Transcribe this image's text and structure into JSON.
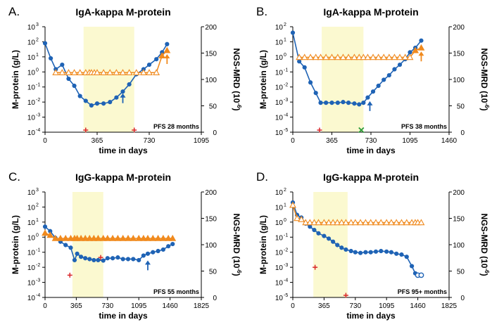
{
  "colors": {
    "m_protein": "#1f63b5",
    "ngs": "#f08a1e",
    "treatment_band": "#fbf9d0",
    "event_plus": "#d9262a",
    "event_x": "#2a9a3a"
  },
  "chart_data": [
    {
      "type": "line",
      "panel": "A.",
      "title": "IgA-kappa M-protein",
      "xlabel": "time in days",
      "ylabel_left": "M-protein (g/L)",
      "ylabel_right": "NGS-MRD (10",
      "ylabel_right_sup": "-6",
      "ylabel_right_close": ")",
      "xlim": [
        0,
        1095
      ],
      "xticks": [
        "0",
        "365",
        "730",
        "1095"
      ],
      "ylim_log_exp": [
        -4,
        3
      ],
      "y_base": "10",
      "yright_lim": [
        0,
        200
      ],
      "yright_ticks": [
        "0",
        "50",
        "100",
        "150",
        "200"
      ],
      "treatment_band": [
        270,
        625
      ],
      "pfs_label": "PFS 28 months",
      "series": [
        {
          "name": "M-protein",
          "axis": "left",
          "points": [
            [
              0,
              80
            ],
            [
              40,
              8
            ],
            [
              75,
              1.5
            ],
            [
              120,
              3
            ],
            [
              165,
              0.35
            ],
            [
              205,
              0.12
            ],
            [
              245,
              0.025
            ],
            [
              285,
              0.012
            ],
            [
              325,
              0.006
            ],
            [
              365,
              0.008
            ],
            [
              410,
              0.008
            ],
            [
              455,
              0.01
            ],
            [
              500,
              0.02
            ],
            [
              545,
              0.05
            ],
            [
              590,
              0.15
            ],
            [
              640,
              0.7
            ],
            [
              690,
              1.5
            ],
            [
              730,
              3
            ],
            [
              780,
              7
            ],
            [
              820,
              20
            ],
            [
              855,
              70
            ]
          ]
        },
        {
          "name": "NGS-MRD",
          "axis": "right",
          "open_triangles_below_last": true,
          "points": [
            [
              75,
              113
            ],
            [
              120,
              113
            ],
            [
              165,
              113
            ],
            [
              205,
              113
            ],
            [
              245,
              113
            ],
            [
              285,
              113
            ],
            [
              310,
              113
            ],
            [
              325,
              113
            ],
            [
              345,
              113
            ],
            [
              365,
              113
            ],
            [
              410,
              113
            ],
            [
              455,
              113
            ],
            [
              500,
              113
            ],
            [
              545,
              113
            ],
            [
              590,
              113
            ],
            [
              640,
              113
            ],
            [
              690,
              113
            ],
            [
              730,
              113
            ],
            [
              780,
              113
            ],
            [
              820,
              145
            ],
            [
              855,
              155
            ]
          ]
        }
      ],
      "arrows": [
        {
          "axis": "left",
          "x": 545,
          "y": 0.02,
          "color": "m_protein"
        },
        {
          "axis": "right",
          "x": 855,
          "y": 140,
          "color": "ngs"
        }
      ],
      "events": [
        {
          "x": 285,
          "symbol": "+",
          "color": "event_plus"
        },
        {
          "x": 625,
          "symbol": "+",
          "color": "event_plus"
        }
      ]
    },
    {
      "type": "line",
      "panel": "B.",
      "title": "IgA-kappa M-protein",
      "xlabel": "time in days",
      "ylabel_left": "M-protein (g/L)",
      "ylabel_right": "NGS-MRD (10",
      "ylabel_right_sup": "-6",
      "ylabel_right_close": ")",
      "xlim": [
        0,
        1460
      ],
      "xticks": [
        "0",
        "365",
        "730",
        "1095",
        "1460"
      ],
      "ylim_log_exp": [
        -5,
        2
      ],
      "y_base": "10",
      "yright_lim": [
        0,
        200
      ],
      "yright_ticks": [
        "0",
        "50",
        "100",
        "150",
        "200"
      ],
      "treatment_band": [
        270,
        660
      ],
      "pfs_label": "PFS 38 months",
      "series": [
        {
          "name": "M-protein",
          "axis": "left",
          "points": [
            [
              0,
              40
            ],
            [
              60,
              0.5
            ],
            [
              110,
              0.2
            ],
            [
              165,
              0.02
            ],
            [
              215,
              0.004
            ],
            [
              260,
              0.0009
            ],
            [
              310,
              0.0009
            ],
            [
              365,
              0.0009
            ],
            [
              420,
              0.0009
            ],
            [
              470,
              0.001
            ],
            [
              520,
              0.0009
            ],
            [
              575,
              0.0008
            ],
            [
              620,
              0.0007
            ],
            [
              660,
              0.0009
            ],
            [
              700,
              0.002
            ],
            [
              750,
              0.005
            ],
            [
              800,
              0.012
            ],
            [
              850,
              0.03
            ],
            [
              900,
              0.06
            ],
            [
              950,
              0.15
            ],
            [
              1000,
              0.3
            ],
            [
              1050,
              0.7
            ],
            [
              1095,
              2
            ],
            [
              1145,
              4
            ],
            [
              1200,
              12
            ]
          ]
        },
        {
          "name": "NGS-MRD",
          "axis": "right",
          "open_triangles_below_last": true,
          "points": [
            [
              60,
              142
            ],
            [
              110,
              142
            ],
            [
              165,
              142
            ],
            [
              215,
              142
            ],
            [
              260,
              142
            ],
            [
              310,
              142
            ],
            [
              365,
              142
            ],
            [
              420,
              142
            ],
            [
              470,
              142
            ],
            [
              520,
              142
            ],
            [
              575,
              142
            ],
            [
              620,
              142
            ],
            [
              660,
              142
            ],
            [
              700,
              142
            ],
            [
              750,
              142
            ],
            [
              800,
              142
            ],
            [
              850,
              142
            ],
            [
              900,
              142
            ],
            [
              950,
              142
            ],
            [
              1000,
              142
            ],
            [
              1050,
              142
            ],
            [
              1095,
              142
            ],
            [
              1145,
              155
            ],
            [
              1200,
              160
            ]
          ]
        }
      ],
      "arrows": [
        {
          "axis": "left",
          "x": 720,
          "y": 0.0006,
          "color": "m_protein"
        },
        {
          "axis": "right",
          "x": 1200,
          "y": 145,
          "color": "ngs"
        }
      ],
      "events": [
        {
          "x": 250,
          "symbol": "+",
          "color": "event_plus"
        },
        {
          "x": 640,
          "symbol": "x",
          "color": "event_x"
        }
      ]
    },
    {
      "type": "line",
      "panel": "C.",
      "title": "IgG-kappa M-protein",
      "xlabel": "time in days",
      "ylabel_left": "M-protein (g/L)",
      "ylabel_right": "NGS-MRD (10",
      "ylabel_right_sup": "-6",
      "ylabel_right_close": ")",
      "xlim": [
        0,
        1825
      ],
      "xticks": [
        "0",
        "365",
        "730",
        "1095",
        "1460",
        "1825"
      ],
      "ylim_log_exp": [
        -4,
        3
      ],
      "y_base": "10",
      "yright_lim": [
        0,
        200
      ],
      "yright_ticks": [
        "0",
        "50",
        "100",
        "150",
        "200"
      ],
      "treatment_band": [
        320,
        680
      ],
      "pfs_label": "PFS 55 months",
      "series": [
        {
          "name": "M-protein",
          "axis": "left",
          "points": [
            [
              0,
              5
            ],
            [
              60,
              2.5
            ],
            [
              120,
              0.9
            ],
            [
              180,
              0.5
            ],
            [
              240,
              0.3
            ],
            [
              300,
              0.2
            ],
            [
              345,
              0.03
            ],
            [
              375,
              0.08
            ],
            [
              420,
              0.05
            ],
            [
              470,
              0.04
            ],
            [
              520,
              0.035
            ],
            [
              570,
              0.03
            ],
            [
              620,
              0.03
            ],
            [
              680,
              0.028
            ],
            [
              730,
              0.04
            ],
            [
              790,
              0.04
            ],
            [
              850,
              0.045
            ],
            [
              910,
              0.035
            ],
            [
              970,
              0.035
            ],
            [
              1030,
              0.035
            ],
            [
              1095,
              0.03
            ],
            [
              1150,
              0.06
            ],
            [
              1200,
              0.08
            ],
            [
              1260,
              0.1
            ],
            [
              1320,
              0.12
            ],
            [
              1380,
              0.15
            ],
            [
              1440,
              0.25
            ],
            [
              1490,
              0.35
            ]
          ]
        },
        {
          "name": "NGS-MRD",
          "axis": "right",
          "open_triangles_below_last": false,
          "points": [
            [
              0,
              122
            ],
            [
              60,
              118
            ],
            [
              120,
              112
            ],
            [
              180,
              112
            ],
            [
              240,
              112
            ],
            [
              300,
              112
            ],
            [
              345,
              112
            ],
            [
              375,
              112
            ],
            [
              420,
              112
            ],
            [
              470,
              112
            ],
            [
              520,
              112
            ],
            [
              570,
              112
            ],
            [
              620,
              112
            ],
            [
              680,
              112
            ],
            [
              730,
              112
            ],
            [
              790,
              112
            ],
            [
              850,
              112
            ],
            [
              910,
              112
            ],
            [
              970,
              112
            ],
            [
              1030,
              112
            ],
            [
              1095,
              112
            ],
            [
              1150,
              112
            ],
            [
              1200,
              112
            ],
            [
              1260,
              112
            ],
            [
              1320,
              112
            ],
            [
              1380,
              112
            ],
            [
              1440,
              112
            ],
            [
              1490,
              112
            ]
          ]
        }
      ],
      "arrows": [
        {
          "axis": "left",
          "x": 1200,
          "y": 0.015,
          "color": "m_protein"
        }
      ],
      "events": [
        {
          "x": 290,
          "y": 0.003,
          "symbol": "+",
          "color": "event_plus"
        },
        {
          "x": 650,
          "y": 0.045,
          "symbol": "+",
          "color": "event_plus"
        }
      ]
    },
    {
      "type": "line",
      "panel": "D.",
      "title": "IgG-kappa M-protein",
      "xlabel": "time in days",
      "ylabel_left": "M-protein (g/L)",
      "ylabel_right": "NGS-MRD (10",
      "ylabel_right_sup": "-6",
      "ylabel_right_close": ")",
      "xlim": [
        0,
        1825
      ],
      "xticks": [
        "0",
        "365",
        "730",
        "1095",
        "1460",
        "1825"
      ],
      "ylim_log_exp": [
        -5,
        2
      ],
      "y_base": "10",
      "yright_lim": [
        0,
        200
      ],
      "yright_ticks": [
        "0",
        "50",
        "100",
        "150",
        "200"
      ],
      "treatment_band": [
        240,
        640
      ],
      "pfs_label": "PFS 95+ months",
      "series": [
        {
          "name": "M-protein",
          "axis": "left",
          "points": [
            [
              0,
              20
            ],
            [
              50,
              3
            ],
            [
              100,
              2
            ],
            [
              150,
              0.8
            ],
            [
              200,
              0.5
            ],
            [
              250,
              0.3
            ],
            [
              300,
              0.18
            ],
            [
              365,
              0.12
            ],
            [
              420,
              0.08
            ],
            [
              470,
              0.05
            ],
            [
              520,
              0.03
            ],
            [
              570,
              0.02
            ],
            [
              620,
              0.015
            ],
            [
              680,
              0.012
            ],
            [
              730,
              0.01
            ],
            [
              790,
              0.009
            ],
            [
              850,
              0.01
            ],
            [
              910,
              0.01
            ],
            [
              970,
              0.011
            ],
            [
              1030,
              0.012
            ],
            [
              1095,
              0.011
            ],
            [
              1150,
              0.01
            ],
            [
              1210,
              0.008
            ],
            [
              1270,
              0.007
            ],
            [
              1330,
              0.005
            ],
            [
              1390,
              0.0012
            ],
            [
              1430,
              0.0004
            ]
          ]
        },
        {
          "name": "M-protein (open)",
          "axis": "left",
          "open_circles": true,
          "points": [
            [
              1460,
              0.0003
            ],
            [
              1500,
              0.0003
            ]
          ]
        },
        {
          "name": "NGS-MRD",
          "axis": "right",
          "open_triangles_below_last": true,
          "points": [
            [
              0,
              175
            ],
            [
              50,
              150
            ],
            [
              100,
              148
            ],
            [
              150,
              142
            ],
            [
              200,
              142
            ],
            [
              250,
              142
            ],
            [
              300,
              142
            ],
            [
              365,
              142
            ],
            [
              420,
              142
            ],
            [
              470,
              142
            ],
            [
              520,
              142
            ],
            [
              570,
              142
            ],
            [
              620,
              142
            ],
            [
              680,
              142
            ],
            [
              730,
              142
            ],
            [
              790,
              142
            ],
            [
              850,
              142
            ],
            [
              910,
              142
            ],
            [
              970,
              142
            ],
            [
              1030,
              142
            ],
            [
              1095,
              142
            ],
            [
              1150,
              142
            ],
            [
              1210,
              142
            ],
            [
              1270,
              142
            ],
            [
              1330,
              142
            ],
            [
              1390,
              142
            ],
            [
              1430,
              142
            ],
            [
              1460,
              142
            ],
            [
              1500,
              142
            ]
          ]
        }
      ],
      "arrows": [],
      "events": [
        {
          "x": 260,
          "y": 0.001,
          "symbol": "+",
          "color": "event_plus"
        },
        {
          "x": 620,
          "symbol": "+",
          "color": "event_plus"
        }
      ]
    }
  ]
}
